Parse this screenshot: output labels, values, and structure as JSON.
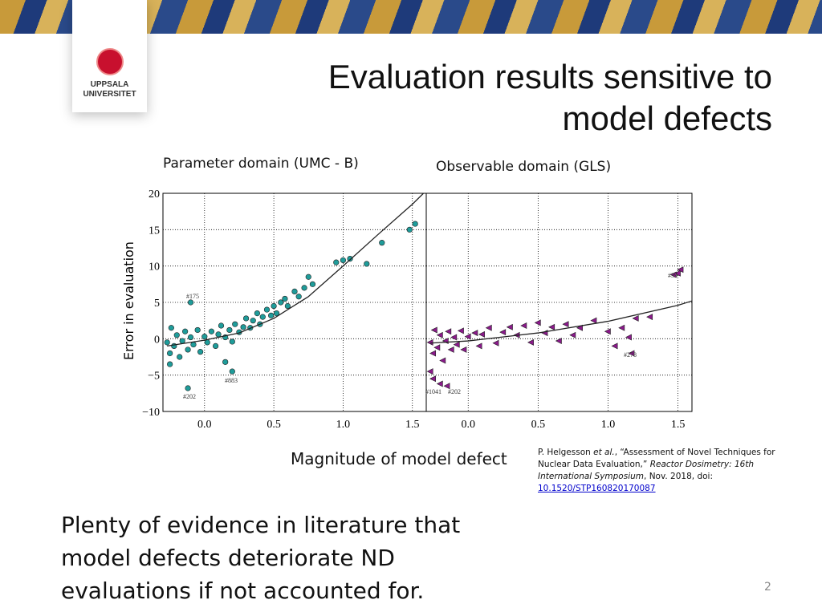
{
  "slide": {
    "title_line1": "Evaluation results sensitive to",
    "title_line2": "model defects",
    "logo_line1": "UPPSALA",
    "logo_line2": "UNIVERSITET",
    "y_axis_label": "Error in evaluation",
    "x_axis_label": "Magnitude of model defect",
    "citation": {
      "part1": "P. Helgesson ",
      "part2": "et al.",
      "part3": ", “Assessment of Novel Techniques for Nuclear Data Evaluation,” ",
      "part4": "Reactor Dosimetry: 16th International Symposium",
      "part5": ", Nov. 2018, doi: ",
      "link": "10.1520/STP160820170087"
    },
    "body_line1": "Plenty of evidence in literature that",
    "body_line2": "model defects deteriorate ND",
    "body_line3": "evaluations if not accounted for.",
    "page_number": "2"
  },
  "chart_data": [
    {
      "type": "scatter",
      "title": "Parameter domain (UMC - B)",
      "marker": "circle",
      "xlim": [
        -0.3,
        1.6
      ],
      "ylim": [
        -10,
        20
      ],
      "grid": true,
      "ytick_labels": true,
      "xticks": [
        {
          "value": 0,
          "label": "0.0"
        },
        {
          "value": 0.5,
          "label": "0.5"
        },
        {
          "value": 1,
          "label": "1.0"
        },
        {
          "value": 1.5,
          "label": "1.5"
        }
      ],
      "yticks": [
        {
          "value": -10,
          "label": "−10"
        },
        {
          "value": -5,
          "label": "−5"
        },
        0,
        5,
        10,
        15,
        20
      ],
      "annotations": [
        "#175",
        "#883",
        "#202"
      ],
      "series": [
        {
          "color": "#1f9c9a",
          "x": [
            -0.27,
            -0.25,
            -0.24,
            -0.22,
            -0.2,
            -0.18,
            -0.16,
            -0.14,
            -0.12,
            -0.1,
            -0.08,
            -0.05,
            -0.03,
            0,
            0.02,
            0.05,
            0.08,
            0.1,
            0.12,
            0.15,
            0.18,
            0.2,
            0.22,
            0.25,
            0.28,
            0.3,
            0.33,
            0.35,
            0.38,
            0.4,
            0.42,
            0.45,
            0.48,
            0.5,
            0.52,
            0.55,
            0.58,
            0.6,
            0.65,
            0.68,
            0.72,
            0.75,
            0.78,
            0.95,
            1.0,
            1.05,
            1.17,
            1.28,
            1.48,
            1.52,
            -0.1,
            0.2,
            -0.12,
            -0.25,
            0.15
          ],
          "values": [
            -0.5,
            -2,
            1.5,
            -1,
            0.5,
            -2.5,
            -0.3,
            1,
            -1.5,
            0.2,
            -0.8,
            1.2,
            -1.8,
            0.3,
            -0.5,
            1,
            -1,
            0.6,
            1.8,
            0.2,
            1.2,
            -0.4,
            2,
            0.9,
            1.6,
            2.8,
            1.5,
            2.5,
            3.5,
            2,
            3,
            4,
            3.2,
            4.5,
            3.5,
            5,
            5.5,
            4.5,
            6.5,
            5.8,
            7,
            8.5,
            7.5,
            10.5,
            10.8,
            11,
            10.3,
            13.2,
            15,
            15.8,
            5,
            -4.5,
            -6.8,
            -3.5,
            -3.2
          ]
        },
        {
          "type": "line",
          "color": "#222222",
          "x": [
            -0.27,
            0,
            0.25,
            0.5,
            0.75,
            1.0,
            1.25,
            1.5,
            1.58
          ],
          "values": [
            -1,
            -0.2,
            0.8,
            2.8,
            5.8,
            10,
            14.3,
            18.5,
            20
          ]
        }
      ]
    },
    {
      "type": "scatter",
      "title": "Observable domain (GLS)",
      "marker": "triangle-left",
      "xlim": [
        -0.3,
        1.6
      ],
      "ylim": [
        -10,
        20
      ],
      "grid": true,
      "ytick_labels": false,
      "xticks": [
        {
          "value": 0,
          "label": "0.0"
        },
        {
          "value": 0.5,
          "label": "0.5"
        },
        {
          "value": 1,
          "label": "1.0"
        },
        {
          "value": 1.5,
          "label": "1.5"
        }
      ],
      "yticks": [
        -10,
        -5,
        0,
        5,
        10,
        15,
        20
      ],
      "annotations": [
        "#1041",
        "#202",
        "#278",
        "#39"
      ],
      "series": [
        {
          "color": "#8b1a8b",
          "x": [
            -0.27,
            -0.25,
            -0.24,
            -0.22,
            -0.2,
            -0.18,
            -0.16,
            -0.14,
            -0.12,
            -0.1,
            -0.08,
            -0.05,
            -0.03,
            0,
            0.05,
            0.08,
            0.1,
            0.15,
            0.2,
            0.25,
            0.3,
            0.35,
            0.4,
            0.45,
            0.5,
            0.55,
            0.6,
            0.65,
            0.7,
            0.75,
            0.8,
            0.9,
            1.0,
            1.1,
            1.2,
            1.3,
            1.05,
            1.15,
            1.17,
            1.5,
            1.52,
            1.47,
            -0.27,
            -0.25,
            -0.2,
            -0.15
          ],
          "values": [
            -0.5,
            -2,
            1.2,
            -1.2,
            0.5,
            -3,
            -0.3,
            1,
            -1.5,
            0.2,
            -0.8,
            1.1,
            -1.5,
            0.3,
            0.8,
            -1,
            0.6,
            1.5,
            -0.6,
            0.9,
            1.6,
            0.5,
            1.8,
            -0.5,
            2.2,
            0.8,
            1.6,
            -0.3,
            2,
            0.5,
            1.5,
            2.5,
            1,
            1.5,
            2.8,
            3,
            -1,
            0.2,
            -2,
            9,
            9.5,
            8.8,
            -4.5,
            -5.5,
            -6.2,
            -6.5
          ]
        },
        {
          "type": "line",
          "color": "#222222",
          "x": [
            -0.27,
            0,
            0.5,
            1.0,
            1.5,
            1.6
          ],
          "values": [
            -0.6,
            -0.3,
            0.8,
            2.4,
            4.6,
            5.2
          ]
        }
      ]
    }
  ]
}
